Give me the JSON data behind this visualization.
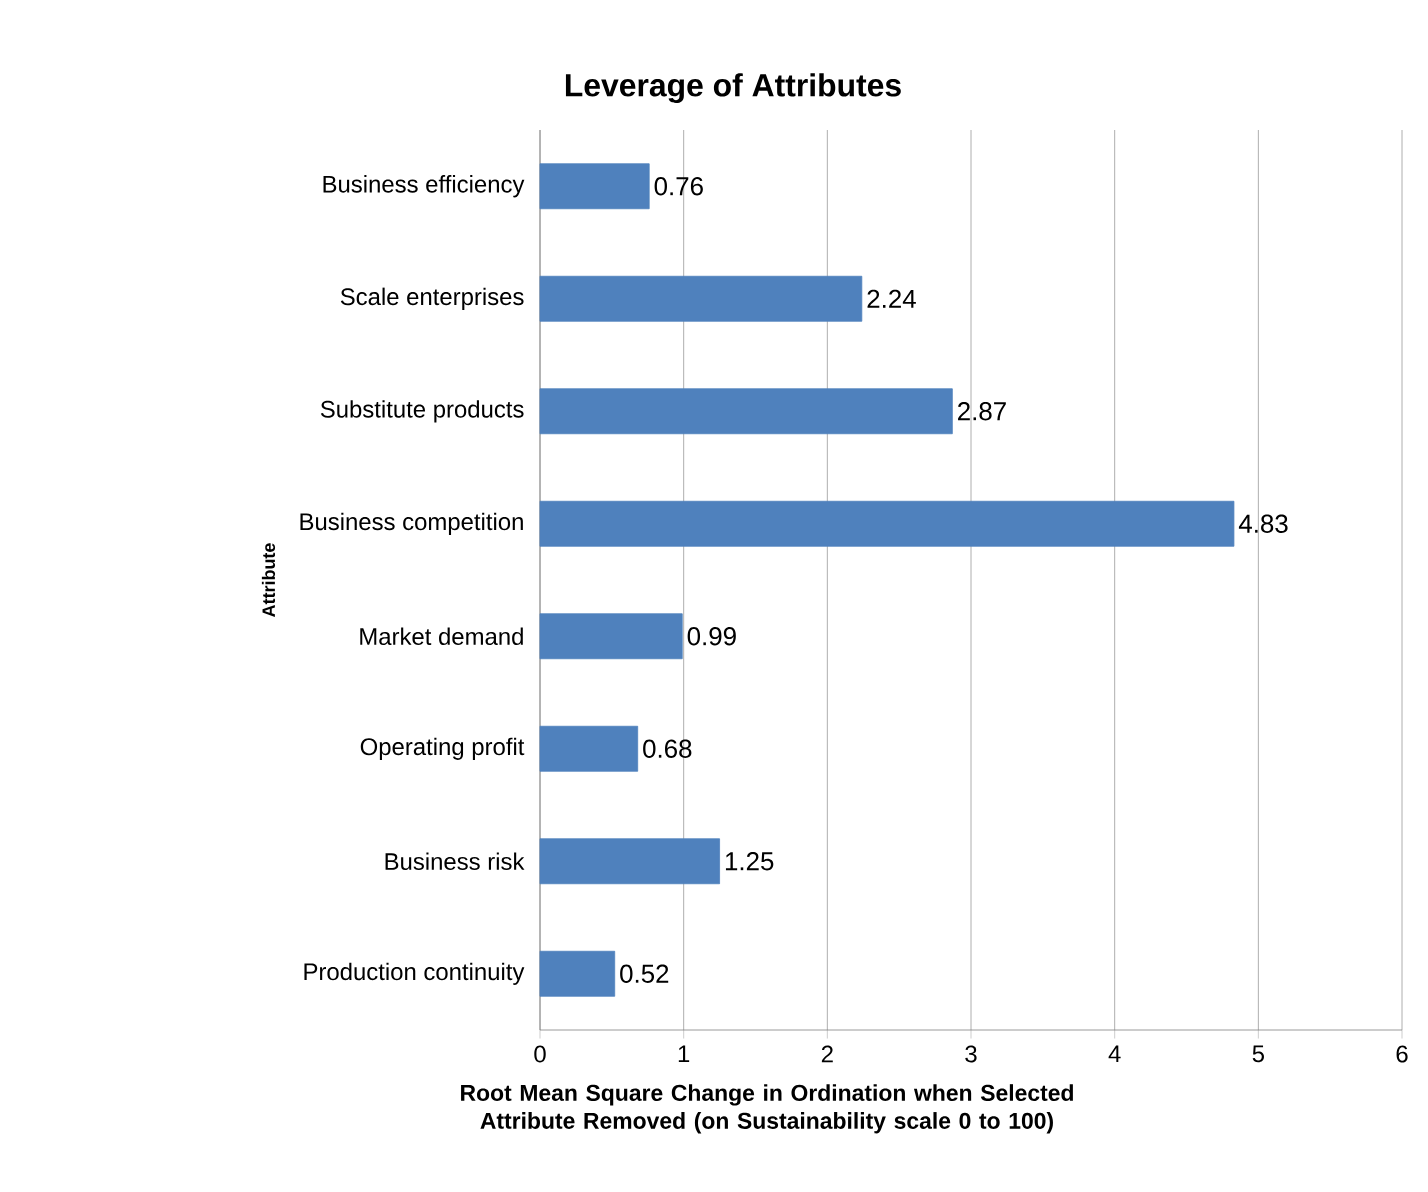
{
  "chart_data": {
    "type": "bar",
    "orientation": "horizontal",
    "title": "Leverage of Attributes",
    "xlabel": "Root Mean Square Change in Ordination when Selected Attribute Removed (on Sustainability scale 0 to 100)",
    "ylabel": "Attribute",
    "categories": [
      "Business efficiency",
      "Scale enterprises",
      "Substitute products",
      "Business competition",
      "Market demand",
      "Operating profit",
      "Business risk",
      "Production continuity"
    ],
    "values": [
      0.76,
      2.24,
      2.87,
      4.83,
      0.99,
      0.68,
      1.25,
      0.52
    ],
    "color": "#4f81bd",
    "xlim": [
      0,
      6
    ],
    "xticks": [
      0,
      1,
      2,
      3,
      4,
      5,
      6
    ],
    "grid": "x",
    "data_labels": true
  }
}
